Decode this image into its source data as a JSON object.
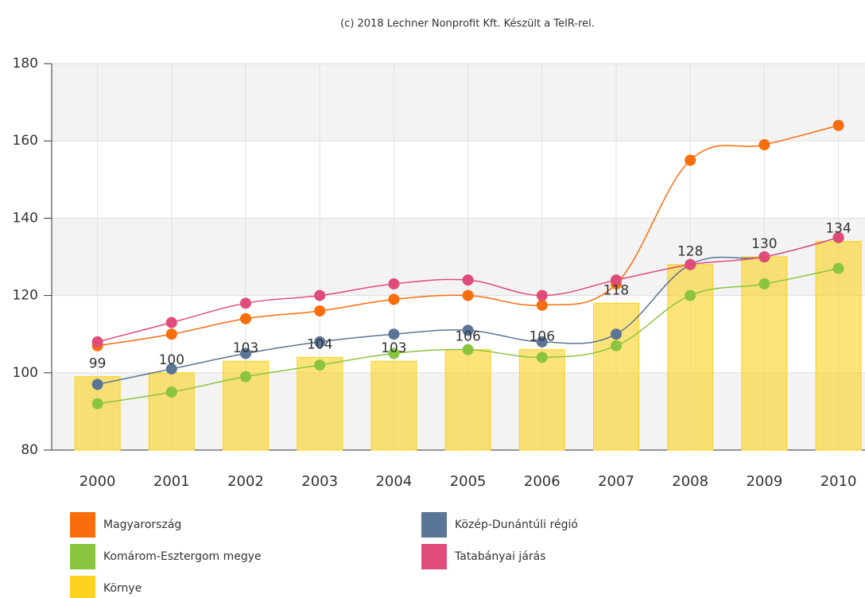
{
  "chart_data": {
    "type": "combo",
    "credits": "(c) 2018 Lechner Nonprofit Kft. Készült a TeIR-rel.",
    "categories": [
      "2000",
      "2001",
      "2002",
      "2003",
      "2004",
      "2005",
      "2006",
      "2007",
      "2008",
      "2009",
      "2010"
    ],
    "series": [
      {
        "name": "Magyarország",
        "type": "line",
        "color": "#f96d0d",
        "values": [
          107,
          110,
          114,
          116,
          119,
          120,
          117.5,
          123,
          155,
          159,
          164
        ]
      },
      {
        "name": "Közép-Dunántúli régió",
        "type": "line",
        "color": "#5a7596",
        "values": [
          97,
          101,
          105,
          108,
          110,
          111,
          108,
          110,
          128,
          130,
          135
        ]
      },
      {
        "name": "Komárom-Esztergom megye",
        "type": "line",
        "color": "#8bc53f",
        "values": [
          92,
          95,
          99,
          102,
          105,
          106,
          104,
          107,
          120,
          123,
          127
        ]
      },
      {
        "name": "Tatabányai járás",
        "type": "line",
        "color": "#e04c7a",
        "values": [
          108,
          113,
          118,
          120,
          123,
          124,
          120,
          124,
          128,
          130,
          135
        ]
      },
      {
        "name": "Környe",
        "type": "bar",
        "color": "#fcd21f",
        "values": [
          99,
          100,
          103,
          104,
          103,
          106,
          106,
          118,
          128,
          130,
          134
        ]
      }
    ],
    "ylim": [
      80,
      180
    ],
    "yticks": [
      80,
      100,
      120,
      140,
      160,
      180
    ],
    "grid": true
  }
}
